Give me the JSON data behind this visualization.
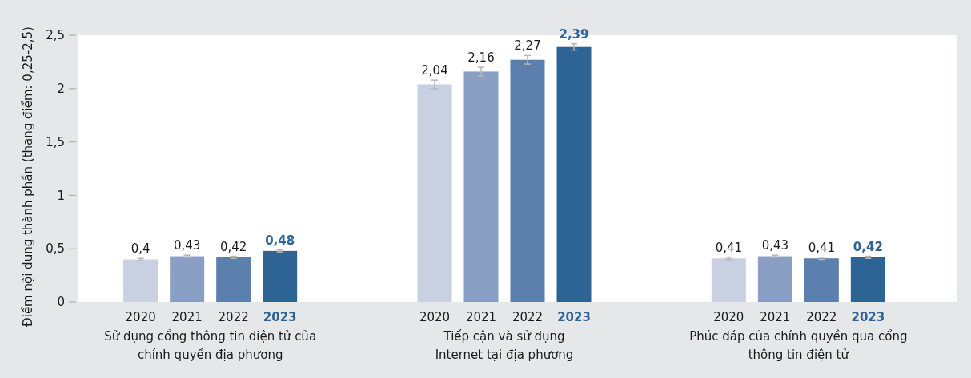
{
  "chart_data": {
    "type": "bar",
    "ylabel": "Điểm nội dung thành phần (thang điểm: 0,25-2,5)",
    "categories": [
      "Sử dụng cổng thông tin điện tử của\nchính quyền địa phương",
      "Tiếp cận và sử dụng\nInternet tại địa phương",
      "Phúc đáp của chính quyền qua cổng\nthông tin điện tử"
    ],
    "series": [
      {
        "name": "2020",
        "color": "#c8d0e2",
        "values": [
          0.4,
          2.04,
          0.41
        ],
        "value_labels": [
          "0,4",
          "2,04",
          "0,41"
        ],
        "errors": [
          0.01,
          0.04,
          0.01
        ]
      },
      {
        "name": "2021",
        "color": "#8a9fc4",
        "values": [
          0.43,
          2.16,
          0.43
        ],
        "value_labels": [
          "0,43",
          "2,16",
          "0,43"
        ],
        "errors": [
          0.01,
          0.04,
          0.01
        ]
      },
      {
        "name": "2022",
        "color": "#5b80ae",
        "values": [
          0.42,
          2.27,
          0.41
        ],
        "value_labels": [
          "0,42",
          "2,27",
          "0,41"
        ],
        "errors": [
          0.01,
          0.04,
          0.01
        ]
      },
      {
        "name": "2023",
        "color": "#2e6395",
        "values": [
          0.48,
          2.39,
          0.42
        ],
        "value_labels": [
          "0,48",
          "2,39",
          "0,42"
        ],
        "errors": [
          0.01,
          0.03,
          0.01
        ]
      }
    ],
    "ylim": [
      0,
      2.5
    ],
    "yticks": [
      0,
      {
        "value": 0.5,
        "label": "0,5"
      },
      1,
      {
        "value": 1.5,
        "label": "1,5"
      },
      2,
      {
        "value": 2.5,
        "label": "2,5"
      }
    ],
    "grid": false
  }
}
